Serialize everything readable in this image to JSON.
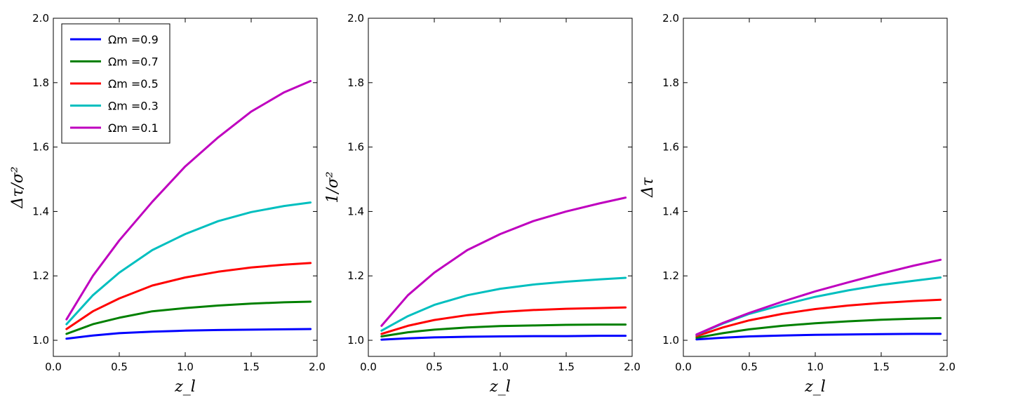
{
  "chart_data": [
    {
      "type": "line",
      "ylabel": "Δτ/σ²",
      "xlabel": "z_l",
      "xlim": [
        0.0,
        2.0
      ],
      "ylim": [
        0.95,
        2.0
      ],
      "xticks": [
        "0.0",
        "0.5",
        "1.0",
        "1.5",
        "2.0"
      ],
      "yticks": [
        "1.0",
        "1.2",
        "1.4",
        "1.6",
        "1.8",
        "2.0"
      ],
      "grid": false,
      "legend": {
        "placement": "top-left"
      },
      "series": [
        {
          "name": "Ωm =0.9",
          "color": "#0000ff",
          "x": [
            0.1,
            0.3,
            0.5,
            0.75,
            1.0,
            1.25,
            1.5,
            1.75,
            1.95
          ],
          "y": [
            1.005,
            1.015,
            1.022,
            1.027,
            1.03,
            1.032,
            1.033,
            1.034,
            1.035
          ]
        },
        {
          "name": "Ωm =0.7",
          "color": "#008000",
          "x": [
            0.1,
            0.3,
            0.5,
            0.75,
            1.0,
            1.25,
            1.5,
            1.75,
            1.95
          ],
          "y": [
            1.02,
            1.05,
            1.07,
            1.09,
            1.1,
            1.108,
            1.114,
            1.118,
            1.12
          ]
        },
        {
          "name": "Ωm =0.5",
          "color": "#ff0000",
          "x": [
            0.1,
            0.3,
            0.5,
            0.75,
            1.0,
            1.25,
            1.5,
            1.75,
            1.95
          ],
          "y": [
            1.035,
            1.09,
            1.13,
            1.17,
            1.195,
            1.213,
            1.226,
            1.235,
            1.24
          ]
        },
        {
          "name": "Ωm =0.3",
          "color": "#00bfbf",
          "x": [
            0.1,
            0.3,
            0.5,
            0.75,
            1.0,
            1.25,
            1.5,
            1.75,
            1.95
          ],
          "y": [
            1.05,
            1.14,
            1.21,
            1.28,
            1.33,
            1.37,
            1.398,
            1.417,
            1.428
          ]
        },
        {
          "name": "Ωm =0.1",
          "color": "#bf00bf",
          "x": [
            0.1,
            0.3,
            0.5,
            0.75,
            1.0,
            1.25,
            1.5,
            1.75,
            1.95
          ],
          "y": [
            1.065,
            1.2,
            1.31,
            1.43,
            1.54,
            1.63,
            1.71,
            1.77,
            1.805
          ]
        }
      ]
    },
    {
      "type": "line",
      "ylabel": "1/σ²",
      "xlabel": "z_l",
      "xlim": [
        0.0,
        2.0
      ],
      "ylim": [
        0.95,
        2.0
      ],
      "xticks": [
        "0.0",
        "0.5",
        "1.0",
        "1.5",
        "2.0"
      ],
      "yticks": [
        "1.0",
        "1.2",
        "1.4",
        "1.6",
        "1.8",
        "2.0"
      ],
      "grid": false,
      "series": [
        {
          "name": "Ωm =0.9",
          "color": "#0000ff",
          "x": [
            0.1,
            0.3,
            0.5,
            0.75,
            1.0,
            1.25,
            1.5,
            1.75,
            1.95
          ],
          "y": [
            1.002,
            1.006,
            1.009,
            1.011,
            1.012,
            1.013,
            1.013,
            1.014,
            1.014
          ]
        },
        {
          "name": "Ωm =0.7",
          "color": "#008000",
          "x": [
            0.1,
            0.3,
            0.5,
            0.75,
            1.0,
            1.25,
            1.5,
            1.75,
            1.95
          ],
          "y": [
            1.012,
            1.025,
            1.033,
            1.04,
            1.044,
            1.046,
            1.048,
            1.049,
            1.049
          ]
        },
        {
          "name": "Ωm =0.5",
          "color": "#ff0000",
          "x": [
            0.1,
            0.3,
            0.5,
            0.75,
            1.0,
            1.25,
            1.5,
            1.75,
            1.95
          ],
          "y": [
            1.02,
            1.045,
            1.063,
            1.078,
            1.088,
            1.094,
            1.098,
            1.1,
            1.102
          ]
        },
        {
          "name": "Ωm =0.3",
          "color": "#00bfbf",
          "x": [
            0.1,
            0.3,
            0.5,
            0.75,
            1.0,
            1.25,
            1.5,
            1.75,
            1.95
          ],
          "y": [
            1.03,
            1.075,
            1.11,
            1.14,
            1.16,
            1.173,
            1.182,
            1.189,
            1.194
          ]
        },
        {
          "name": "Ωm =0.1",
          "color": "#bf00bf",
          "x": [
            0.1,
            0.3,
            0.5,
            0.75,
            1.0,
            1.25,
            1.5,
            1.75,
            1.95
          ],
          "y": [
            1.045,
            1.14,
            1.21,
            1.28,
            1.33,
            1.37,
            1.4,
            1.425,
            1.443
          ]
        }
      ]
    },
    {
      "type": "line",
      "ylabel": "Δτ",
      "xlabel": "z_l",
      "xlim": [
        0.0,
        2.0
      ],
      "ylim": [
        0.95,
        2.0
      ],
      "xticks": [
        "0.0",
        "0.5",
        "1.0",
        "1.5",
        "2.0"
      ],
      "yticks": [
        "1.0",
        "1.2",
        "1.4",
        "1.6",
        "1.8",
        "2.0"
      ],
      "grid": false,
      "series": [
        {
          "name": "Ωm =0.9",
          "color": "#0000ff",
          "x": [
            0.1,
            0.3,
            0.5,
            0.75,
            1.0,
            1.25,
            1.5,
            1.75,
            1.95
          ],
          "y": [
            1.003,
            1.008,
            1.012,
            1.015,
            1.017,
            1.018,
            1.019,
            1.02,
            1.02
          ]
        },
        {
          "name": "Ωm =0.7",
          "color": "#008000",
          "x": [
            0.1,
            0.3,
            0.5,
            0.75,
            1.0,
            1.25,
            1.5,
            1.75,
            1.95
          ],
          "y": [
            1.008,
            1.022,
            1.034,
            1.045,
            1.053,
            1.059,
            1.064,
            1.067,
            1.069
          ]
        },
        {
          "name": "Ωm =0.5",
          "color": "#ff0000",
          "x": [
            0.1,
            0.3,
            0.5,
            0.75,
            1.0,
            1.25,
            1.5,
            1.75,
            1.95
          ],
          "y": [
            1.013,
            1.04,
            1.062,
            1.082,
            1.097,
            1.108,
            1.116,
            1.122,
            1.126
          ]
        },
        {
          "name": "Ωm =0.3",
          "color": "#00bfbf",
          "x": [
            0.1,
            0.3,
            0.5,
            0.75,
            1.0,
            1.25,
            1.5,
            1.75,
            1.95
          ],
          "y": [
            1.017,
            1.052,
            1.082,
            1.11,
            1.135,
            1.155,
            1.172,
            1.185,
            1.195
          ]
        },
        {
          "name": "Ωm =0.1",
          "color": "#bf00bf",
          "x": [
            0.1,
            0.3,
            0.5,
            0.75,
            1.0,
            1.25,
            1.5,
            1.75,
            1.95
          ],
          "y": [
            1.018,
            1.054,
            1.085,
            1.12,
            1.152,
            1.18,
            1.207,
            1.232,
            1.25
          ]
        }
      ]
    }
  ]
}
